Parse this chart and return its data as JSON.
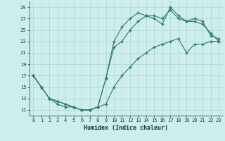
{
  "xlabel": "Humidex (Indice chaleur)",
  "bg_color": "#ceeeed",
  "grid_color": "#aed4d3",
  "line_color": "#2a7a6a",
  "xlim": [
    -0.5,
    23.5
  ],
  "ylim": [
    10,
    30
  ],
  "xticks": [
    0,
    1,
    2,
    3,
    4,
    5,
    6,
    7,
    8,
    9,
    10,
    11,
    12,
    13,
    14,
    15,
    16,
    17,
    18,
    19,
    20,
    21,
    22,
    23
  ],
  "yticks": [
    11,
    13,
    15,
    17,
    19,
    21,
    23,
    25,
    27,
    29
  ],
  "line1_x": [
    0,
    1,
    2,
    3,
    4,
    5,
    6,
    7,
    8,
    9,
    10,
    11,
    12,
    13,
    14,
    15,
    16,
    17,
    18,
    19,
    20,
    21,
    22,
    23
  ],
  "line1_y": [
    17,
    15,
    13,
    12.5,
    12,
    11.5,
    11,
    11,
    11.5,
    16.5,
    23,
    25.5,
    27,
    28,
    27.5,
    27,
    26,
    29,
    27.5,
    26.5,
    27,
    26.5,
    24,
    23.5
  ],
  "line2_x": [
    0,
    1,
    2,
    3,
    4,
    5,
    6,
    7,
    8,
    9,
    10,
    11,
    12,
    13,
    14,
    15,
    16,
    17,
    18,
    19,
    20,
    21,
    22,
    23
  ],
  "line2_y": [
    17,
    15,
    13,
    12.5,
    12,
    11.5,
    11,
    11,
    11.5,
    16.5,
    22,
    23,
    25,
    26.5,
    27.5,
    27.5,
    27,
    28.5,
    27,
    26.5,
    26.5,
    26,
    24.5,
    23
  ],
  "line3_x": [
    0,
    1,
    2,
    3,
    4,
    5,
    6,
    7,
    8,
    9,
    10,
    11,
    12,
    13,
    14,
    15,
    16,
    17,
    18,
    19,
    20,
    21,
    22,
    23
  ],
  "line3_y": [
    17,
    15,
    13,
    12,
    11.5,
    11.5,
    11,
    11,
    11.5,
    12,
    15,
    17,
    18.5,
    20,
    21,
    22,
    22.5,
    23,
    23.5,
    21,
    22.5,
    22.5,
    23,
    23
  ],
  "marker_size": 3,
  "line_width": 0.8
}
